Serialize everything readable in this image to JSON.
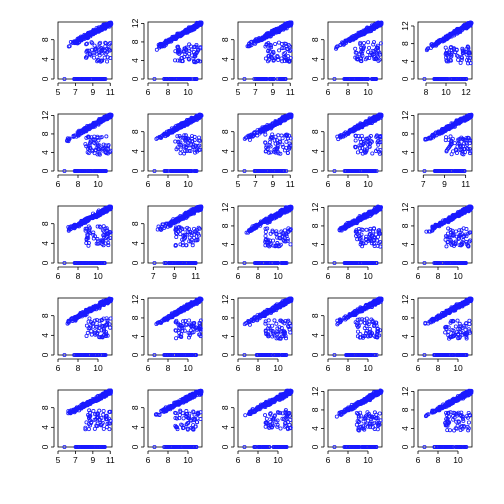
{
  "layout": {
    "rows": 5,
    "cols": 5
  },
  "point_color": "#1a1aff",
  "marker": "open-circle",
  "chart_data": [
    {
      "type": "scatter",
      "xticks": [
        "5",
        "7",
        "9",
        "11"
      ],
      "yticks": [
        "0",
        "4",
        "8"
      ],
      "xlim": [
        5,
        11.2
      ],
      "ylim": [
        0,
        11.6
      ]
    },
    {
      "type": "scatter",
      "xticks": [
        "6",
        "8",
        "10"
      ],
      "yticks": [
        "0",
        "4",
        "8",
        "12"
      ],
      "xlim": [
        6,
        11.4
      ],
      "ylim": [
        0,
        12.3
      ]
    },
    {
      "type": "scatter",
      "xticks": [
        "5",
        "7",
        "9",
        "11"
      ],
      "yticks": [
        "0",
        "4",
        "8"
      ],
      "xlim": [
        5,
        11.2
      ],
      "ylim": [
        0,
        11.6
      ]
    },
    {
      "type": "scatter",
      "xticks": [
        "6",
        "8",
        "10"
      ],
      "yticks": [
        "0",
        "4",
        "8"
      ],
      "xlim": [
        6,
        11.4
      ],
      "ylim": [
        0,
        11.6
      ]
    },
    {
      "type": "scatter",
      "xticks": [
        "8",
        "10",
        "12"
      ],
      "yticks": [
        "0",
        "4",
        "8",
        "12"
      ],
      "xlim": [
        7.2,
        12.6
      ],
      "ylim": [
        0,
        12.9
      ]
    },
    {
      "type": "scatter",
      "xticks": [
        "6",
        "8",
        "10"
      ],
      "yticks": [
        "0",
        "4",
        "8",
        "12"
      ],
      "xlim": [
        6,
        11.4
      ],
      "ylim": [
        0,
        12.3
      ]
    },
    {
      "type": "scatter",
      "xticks": [
        "6",
        "8",
        "10"
      ],
      "yticks": [
        "0",
        "4",
        "8"
      ],
      "xlim": [
        6,
        11.4
      ],
      "ylim": [
        0,
        11.6
      ]
    },
    {
      "type": "scatter",
      "xticks": [
        "5",
        "7",
        "9",
        "11"
      ],
      "yticks": [
        "0",
        "4",
        "8"
      ],
      "xlim": [
        5,
        11.2
      ],
      "ylim": [
        0,
        11.6
      ]
    },
    {
      "type": "scatter",
      "xticks": [
        "6",
        "8",
        "10"
      ],
      "yticks": [
        "0",
        "4",
        "8"
      ],
      "xlim": [
        6,
        11.4
      ],
      "ylim": [
        0,
        11.6
      ]
    },
    {
      "type": "scatter",
      "xticks": [
        "7",
        "9",
        "11"
      ],
      "yticks": [
        "0",
        "4",
        "8",
        "12"
      ],
      "xlim": [
        6.5,
        11.6
      ],
      "ylim": [
        0,
        12.3
      ]
    },
    {
      "type": "scatter",
      "xticks": [
        "6",
        "8",
        "10"
      ],
      "yticks": [
        "0",
        "4",
        "8"
      ],
      "xlim": [
        6,
        11.4
      ],
      "ylim": [
        0,
        11.6
      ]
    },
    {
      "type": "scatter",
      "xticks": [
        "7",
        "9",
        "11"
      ],
      "yticks": [
        "0",
        "4",
        "8"
      ],
      "xlim": [
        6.5,
        11.6
      ],
      "ylim": [
        0,
        11.6
      ]
    },
    {
      "type": "scatter",
      "xticks": [
        "6",
        "8",
        "10"
      ],
      "yticks": [
        "0",
        "4",
        "8",
        "12"
      ],
      "xlim": [
        6,
        11.4
      ],
      "ylim": [
        0,
        12.3
      ]
    },
    {
      "type": "scatter",
      "xticks": [
        "6",
        "8",
        "10"
      ],
      "yticks": [
        "0",
        "4",
        "8",
        "12"
      ],
      "xlim": [
        6,
        11.4
      ],
      "ylim": [
        0,
        12.3
      ]
    },
    {
      "type": "scatter",
      "xticks": [
        "6",
        "8",
        "10"
      ],
      "yticks": [
        "0",
        "4",
        "8",
        "12"
      ],
      "xlim": [
        6,
        11.4
      ],
      "ylim": [
        0,
        12.3
      ]
    },
    {
      "type": "scatter",
      "xticks": [
        "6",
        "8",
        "10"
      ],
      "yticks": [
        "0",
        "4",
        "8"
      ],
      "xlim": [
        6,
        11.4
      ],
      "ylim": [
        0,
        11.6
      ]
    },
    {
      "type": "scatter",
      "xticks": [
        "6",
        "8",
        "10"
      ],
      "yticks": [
        "0",
        "4",
        "8",
        "12"
      ],
      "xlim": [
        6,
        11.4
      ],
      "ylim": [
        0,
        12.3
      ]
    },
    {
      "type": "scatter",
      "xticks": [
        "6",
        "8",
        "10"
      ],
      "yticks": [
        "0",
        "4",
        "8",
        "12"
      ],
      "xlim": [
        6,
        11.4
      ],
      "ylim": [
        0,
        12.3
      ]
    },
    {
      "type": "scatter",
      "xticks": [
        "6",
        "8",
        "10"
      ],
      "yticks": [
        "0",
        "4",
        "8"
      ],
      "xlim": [
        6,
        11.4
      ],
      "ylim": [
        0,
        11.6
      ]
    },
    {
      "type": "scatter",
      "xticks": [
        "6",
        "8",
        "10"
      ],
      "yticks": [
        "0",
        "4",
        "8",
        "12"
      ],
      "xlim": [
        6,
        11.4
      ],
      "ylim": [
        0,
        12.3
      ]
    },
    {
      "type": "scatter",
      "xticks": [
        "5",
        "7",
        "9",
        "11"
      ],
      "yticks": [
        "0",
        "4",
        "8"
      ],
      "xlim": [
        5,
        11.2
      ],
      "ylim": [
        0,
        11.6
      ]
    },
    {
      "type": "scatter",
      "xticks": [
        "6",
        "8",
        "10"
      ],
      "yticks": [
        "0",
        "4",
        "8"
      ],
      "xlim": [
        6,
        11.4
      ],
      "ylim": [
        0,
        11.6
      ]
    },
    {
      "type": "scatter",
      "xticks": [
        "6",
        "8",
        "10"
      ],
      "yticks": [
        "0",
        "4",
        "8"
      ],
      "xlim": [
        6,
        11.4
      ],
      "ylim": [
        0,
        11.6
      ]
    },
    {
      "type": "scatter",
      "xticks": [
        "6",
        "8",
        "10"
      ],
      "yticks": [
        "0",
        "4",
        "8",
        "12"
      ],
      "xlim": [
        6,
        11.4
      ],
      "ylim": [
        0,
        12.3
      ]
    },
    {
      "type": "scatter",
      "xticks": [
        "6",
        "8",
        "10"
      ],
      "yticks": [
        "0",
        "4",
        "8",
        "12"
      ],
      "xlim": [
        6,
        11.4
      ],
      "ylim": [
        0,
        12.3
      ]
    }
  ]
}
